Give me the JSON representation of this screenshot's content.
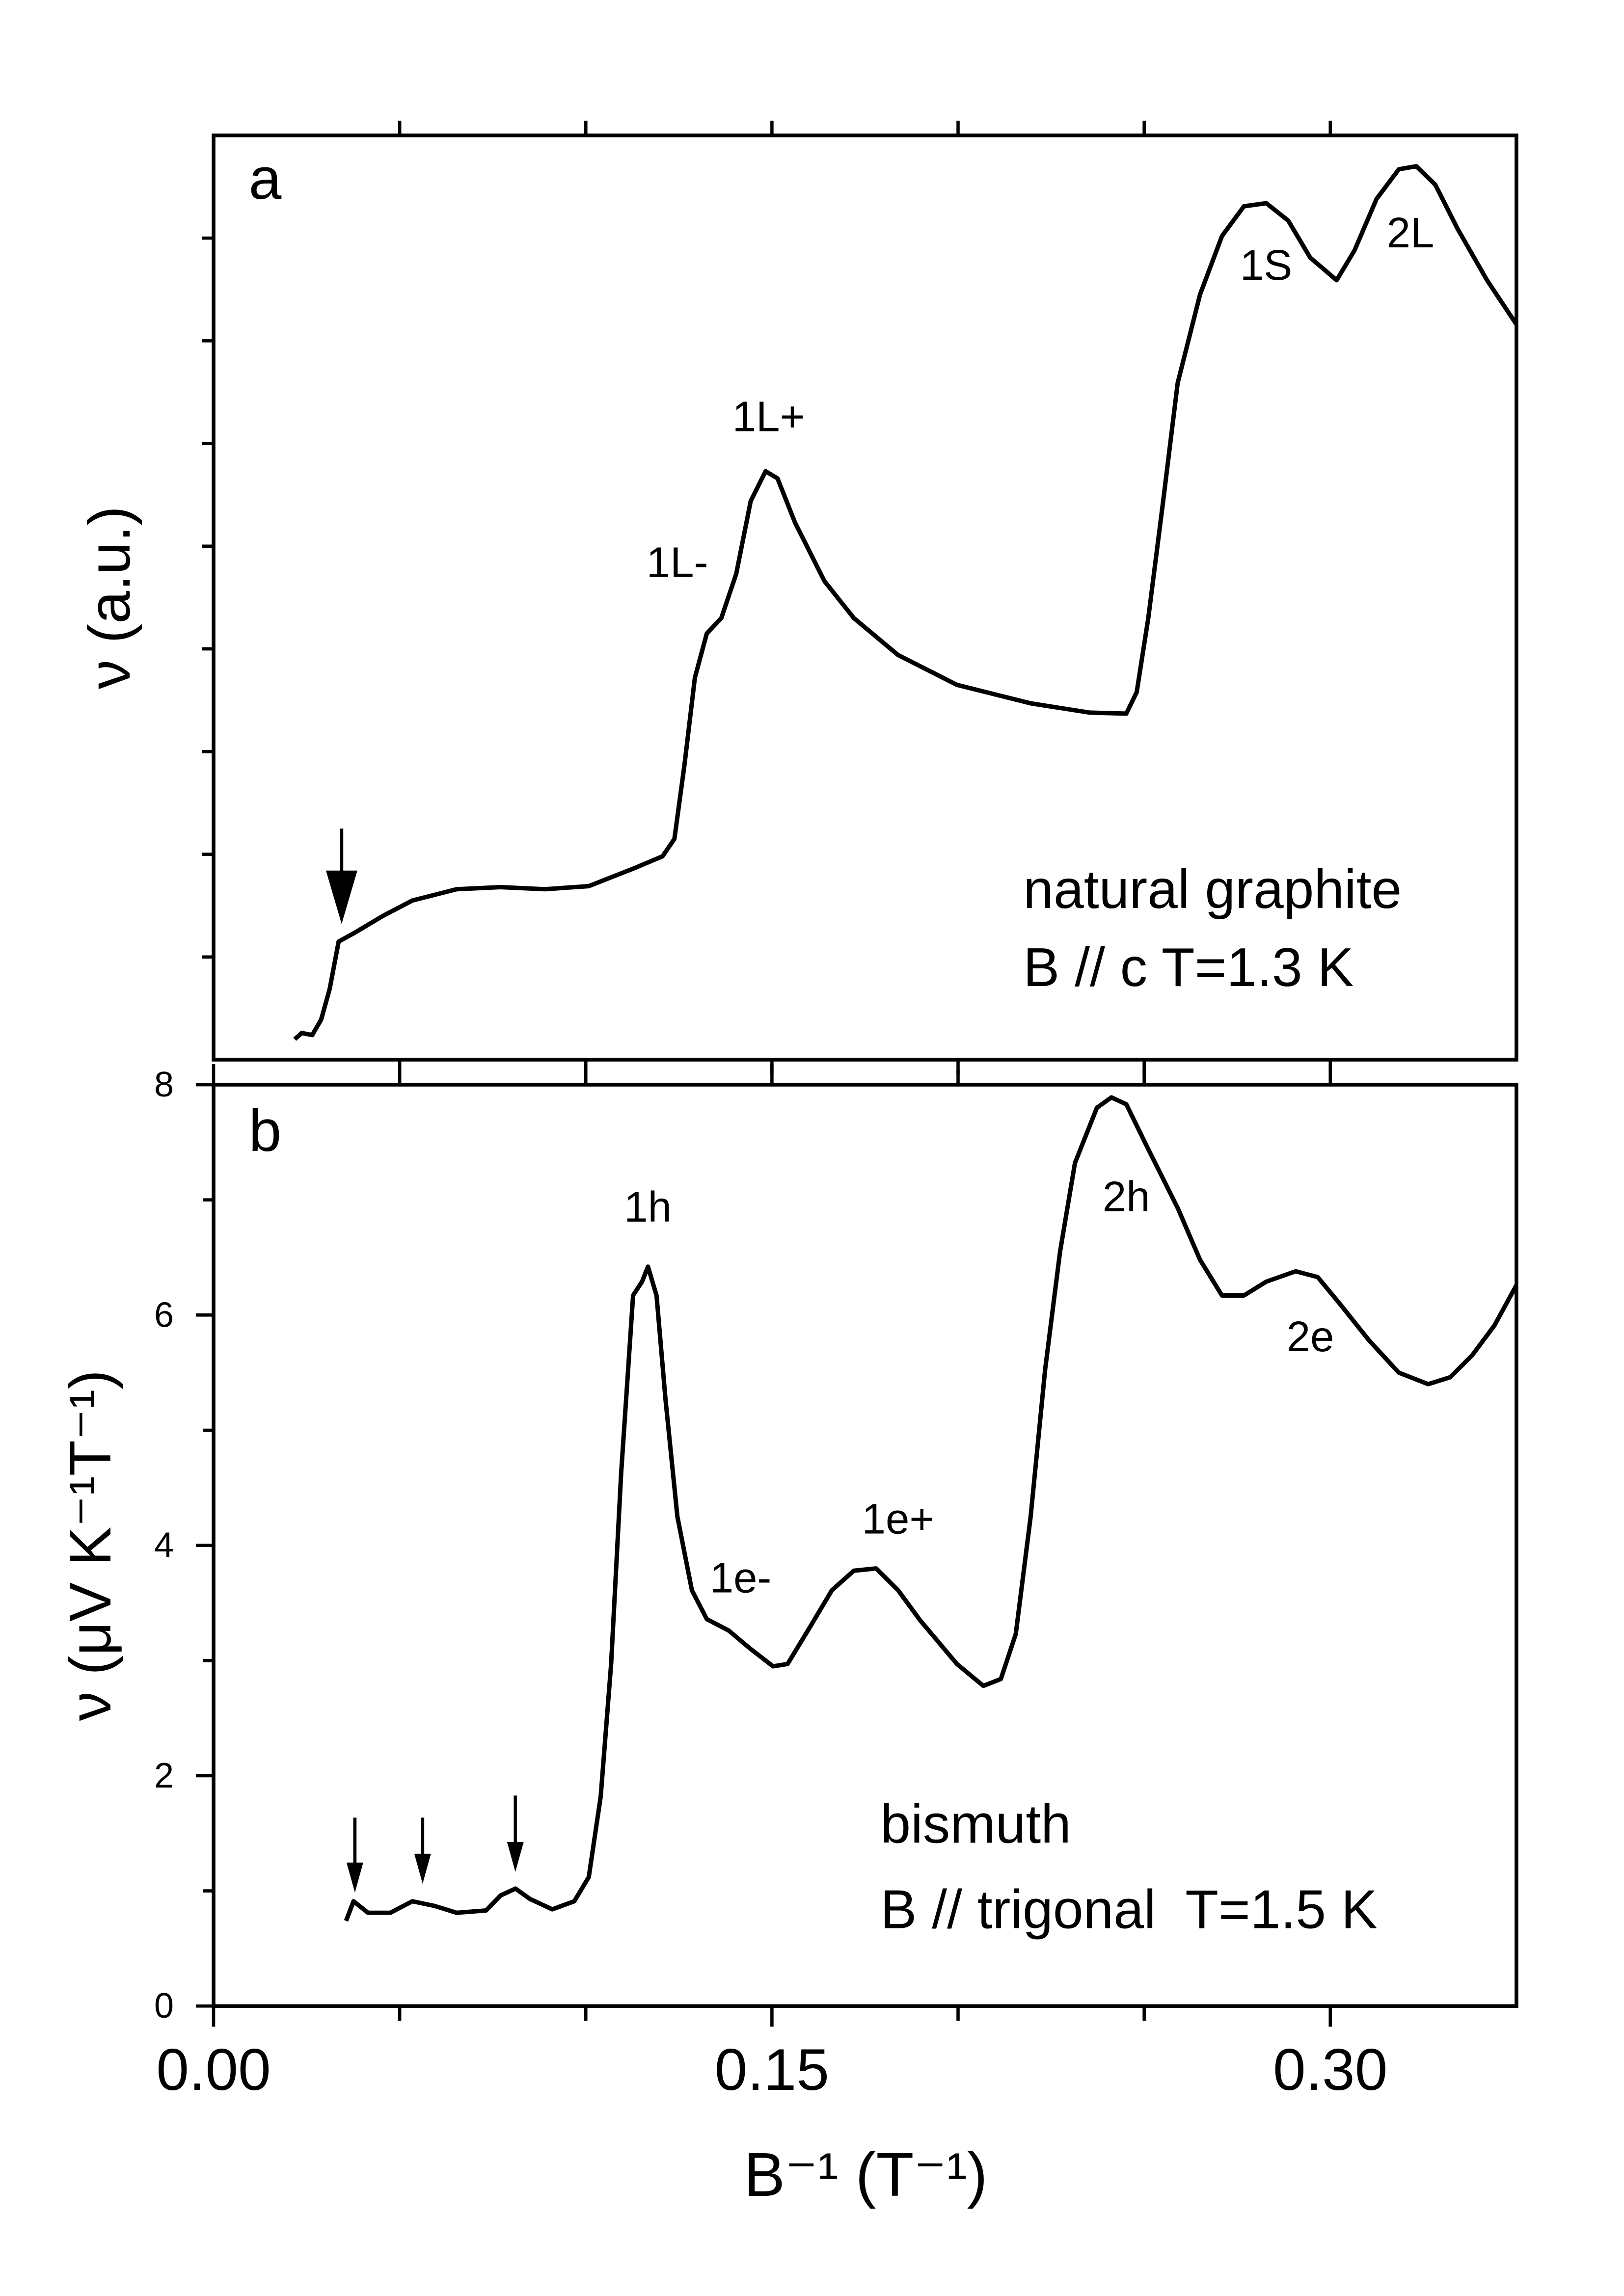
{
  "chart_data": [
    {
      "type": "line",
      "panel_label": "a",
      "y_label": "ν (a.u.)",
      "color": "#000000",
      "annotations": [
        "1L-",
        "1L+",
        "1S",
        "2L"
      ],
      "legend_lines": [
        "natural graphite",
        "B // c T=1.3 K"
      ],
      "xlim": [
        0,
        0.35
      ],
      "xminor_ticks": [
        0.05,
        0.1,
        0.15,
        0.2,
        0.25,
        0.3
      ],
      "ylim": [
        0,
        9
      ],
      "yunlabeled_ticks": [
        1,
        2,
        3,
        4,
        5,
        6,
        7,
        8
      ],
      "x": [
        0.0218,
        0.0237,
        0.0265,
        0.0289,
        0.0312,
        0.0336,
        0.0376,
        0.0455,
        0.0534,
        0.0653,
        0.0771,
        0.089,
        0.1008,
        0.1127,
        0.1206,
        0.1238,
        0.1265,
        0.1293,
        0.1325,
        0.1364,
        0.1404,
        0.1443,
        0.1483,
        0.1515,
        0.1562,
        0.1641,
        0.172,
        0.1839,
        0.1997,
        0.2195,
        0.2353,
        0.2452,
        0.248,
        0.2511,
        0.2551,
        0.259,
        0.265,
        0.2709,
        0.2768,
        0.2828,
        0.2887,
        0.2946,
        0.3017,
        0.3065,
        0.3124,
        0.3184,
        0.3231,
        0.3282,
        0.3342,
        0.3421,
        0.35
      ],
      "values": [
        0.2,
        0.26,
        0.24,
        0.39,
        0.69,
        1.15,
        1.23,
        1.4,
        1.55,
        1.66,
        1.68,
        1.66,
        1.69,
        1.86,
        1.98,
        2.15,
        2.87,
        3.72,
        4.15,
        4.3,
        4.73,
        5.44,
        5.73,
        5.66,
        5.23,
        4.66,
        4.3,
        3.94,
        3.65,
        3.47,
        3.38,
        3.37,
        3.58,
        4.3,
        5.44,
        6.59,
        7.45,
        8.02,
        8.31,
        8.34,
        8.17,
        7.81,
        7.59,
        7.88,
        8.38,
        8.67,
        8.7,
        8.52,
        8.09,
        7.59,
        7.16
      ]
    },
    {
      "type": "line",
      "panel_label": "b",
      "y_label": "ν (μV K⁻¹T⁻¹)",
      "x_label": "B⁻¹ (T⁻¹)",
      "color": "#000000",
      "annotations": [
        "1h",
        "1e-",
        "1e+",
        "2h",
        "2e"
      ],
      "legend_lines": [
        "bismuth",
        "B // trigonal  T=1.5 K"
      ],
      "xlim": [
        0,
        0.35
      ],
      "xticks": [
        {
          "value": 0,
          "label": "0.00"
        },
        0.15,
        {
          "value": 0.3,
          "label": "0.30"
        }
      ],
      "xminor_ticks": [
        0.05,
        0.1,
        0.2,
        0.25
      ],
      "ylim": [
        0,
        8
      ],
      "yticks": [
        0,
        2,
        4,
        6,
        8
      ],
      "yminor_ticks": [
        1,
        3,
        5,
        7
      ],
      "x": [
        0.0356,
        0.0376,
        0.0415,
        0.0475,
        0.0534,
        0.0593,
        0.0653,
        0.0732,
        0.0771,
        0.0811,
        0.085,
        0.091,
        0.0969,
        0.1008,
        0.104,
        0.1068,
        0.1095,
        0.1127,
        0.1151,
        0.1167,
        0.119,
        0.1214,
        0.1246,
        0.1285,
        0.1325,
        0.1384,
        0.1443,
        0.1503,
        0.1542,
        0.1602,
        0.1661,
        0.172,
        0.178,
        0.1839,
        0.1898,
        0.1997,
        0.2068,
        0.2115,
        0.2155,
        0.2195,
        0.2234,
        0.2274,
        0.2314,
        0.2373,
        0.2412,
        0.2452,
        0.2511,
        0.259,
        0.265,
        0.2709,
        0.2768,
        0.2828,
        0.2907,
        0.2966,
        0.3025,
        0.3104,
        0.3184,
        0.3263,
        0.3322,
        0.3381,
        0.3441,
        0.35
      ],
      "values": [
        0.74,
        0.91,
        0.81,
        0.81,
        0.91,
        0.87,
        0.81,
        0.83,
        0.96,
        1.02,
        0.93,
        0.84,
        0.91,
        1.12,
        1.82,
        2.97,
        4.63,
        6.17,
        6.29,
        6.42,
        6.17,
        5.27,
        4.25,
        3.61,
        3.36,
        3.26,
        3.1,
        2.95,
        2.97,
        3.29,
        3.61,
        3.78,
        3.8,
        3.61,
        3.35,
        2.97,
        2.78,
        2.84,
        3.23,
        4.25,
        5.53,
        6.55,
        7.32,
        7.8,
        7.89,
        7.83,
        7.44,
        6.93,
        6.48,
        6.17,
        6.17,
        6.29,
        6.38,
        6.33,
        6.1,
        5.78,
        5.5,
        5.4,
        5.46,
        5.65,
        5.91,
        6.26
      ]
    }
  ]
}
